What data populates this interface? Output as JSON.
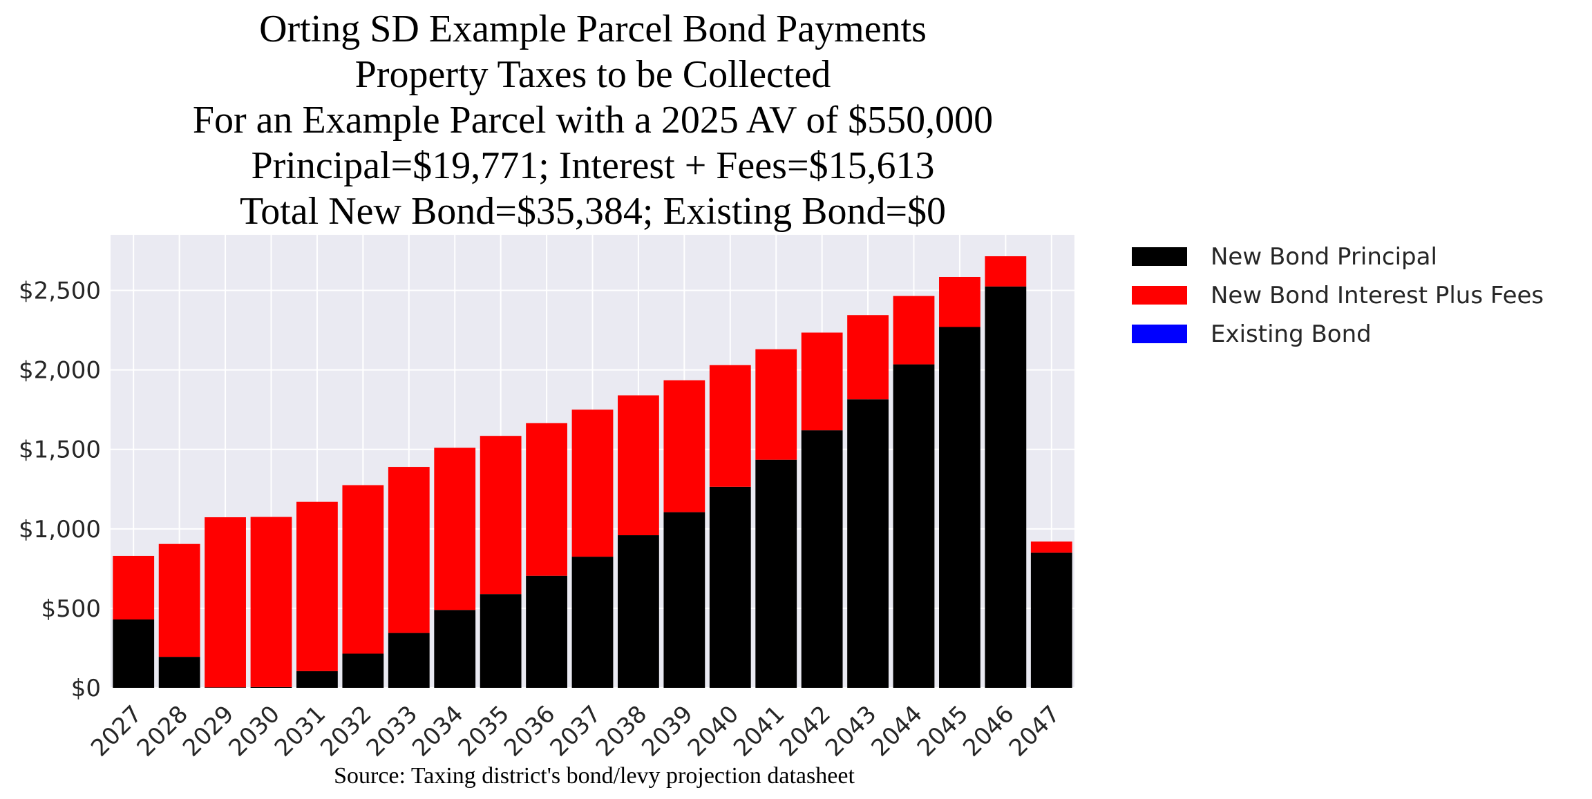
{
  "chart_data": {
    "type": "bar",
    "stacked": true,
    "title_lines": [
      "Orting SD Example Parcel Bond Payments",
      "Property Taxes to be Collected",
      "For an Example Parcel with a 2025 AV of $550,000",
      "Principal=$19,771; Interest + Fees=$15,613",
      "Total New Bond=$35,384; Existing Bond=$0"
    ],
    "source": "Source: Taxing district's bond/levy projection datasheet",
    "categories": [
      "2027",
      "2028",
      "2029",
      "2030",
      "2031",
      "2032",
      "2033",
      "2034",
      "2035",
      "2036",
      "2037",
      "2038",
      "2039",
      "2040",
      "2041",
      "2042",
      "2043",
      "2044",
      "2045",
      "2046",
      "2047"
    ],
    "series": [
      {
        "name": "New Bond Principal",
        "color": "#000000",
        "values": [
          430,
          195,
          3,
          5,
          105,
          215,
          345,
          490,
          590,
          705,
          825,
          960,
          1105,
          1265,
          1435,
          1620,
          1815,
          2035,
          2270,
          2525,
          850
        ]
      },
      {
        "name": "New Bond Interest Plus Fees",
        "color": "#ff0000",
        "values": [
          400,
          710,
          1070,
          1070,
          1065,
          1060,
          1045,
          1020,
          995,
          960,
          925,
          880,
          830,
          765,
          695,
          615,
          530,
          430,
          315,
          190,
          70
        ]
      },
      {
        "name": "Existing Bond",
        "color": "#0000ff",
        "values": [
          0,
          0,
          0,
          0,
          0,
          0,
          0,
          0,
          0,
          0,
          0,
          0,
          0,
          0,
          0,
          0,
          0,
          0,
          0,
          0,
          0
        ]
      }
    ],
    "y_ticks": [
      0,
      500,
      1000,
      1500,
      2000,
      2500
    ],
    "y_tick_labels": [
      "$0",
      "$500",
      "$1,000",
      "$1,500",
      "$2,000",
      "$2,500"
    ],
    "ylim": [
      0,
      2850
    ],
    "grid": true,
    "legend_position": "outside-right-top",
    "plot_background": "#eaeaf2",
    "grid_color": "#ffffff"
  }
}
